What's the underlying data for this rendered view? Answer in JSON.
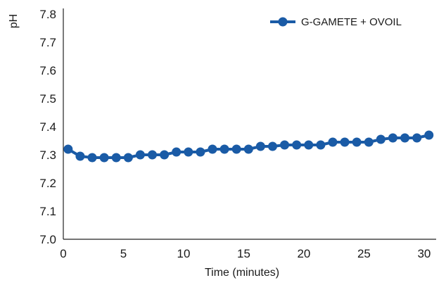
{
  "chart_data": {
    "type": "line",
    "title": "",
    "xlabel": "Time (minutes)",
    "ylabel": "pH",
    "xlim": [
      0,
      31
    ],
    "ylim": [
      7.0,
      7.8
    ],
    "xticks": [
      0,
      5,
      10,
      15,
      20,
      25,
      30
    ],
    "xtick_labels": [
      "0",
      "5",
      "10",
      "15",
      "20",
      "25",
      "30"
    ],
    "yticks": [
      7.0,
      7.1,
      7.2,
      7.3,
      7.4,
      7.5,
      7.6,
      7.7,
      7.8
    ],
    "ytick_labels": [
      "7.0",
      "7.1",
      "7.2",
      "7.3",
      "7.4",
      "7.5",
      "7.6",
      "7.7",
      "7.8"
    ],
    "grid": false,
    "legend_position": "top-right",
    "series": [
      {
        "name": "G-GAMETE + OVOIL",
        "color": "#1a5ba6",
        "x": [
          0.4,
          1.4,
          2.4,
          3.4,
          4.4,
          5.4,
          6.4,
          7.4,
          8.4,
          9.4,
          10.4,
          11.4,
          12.4,
          13.4,
          14.4,
          15.4,
          16.4,
          17.4,
          18.4,
          19.4,
          20.4,
          21.4,
          22.4,
          23.4,
          24.4,
          25.4,
          26.4,
          27.4,
          28.4,
          29.4,
          30.4
        ],
        "y": [
          7.32,
          7.295,
          7.29,
          7.29,
          7.29,
          7.29,
          7.3,
          7.3,
          7.3,
          7.31,
          7.31,
          7.31,
          7.32,
          7.32,
          7.32,
          7.32,
          7.33,
          7.33,
          7.335,
          7.335,
          7.335,
          7.335,
          7.345,
          7.345,
          7.345,
          7.345,
          7.355,
          7.36,
          7.36,
          7.36,
          7.37
        ]
      }
    ]
  }
}
